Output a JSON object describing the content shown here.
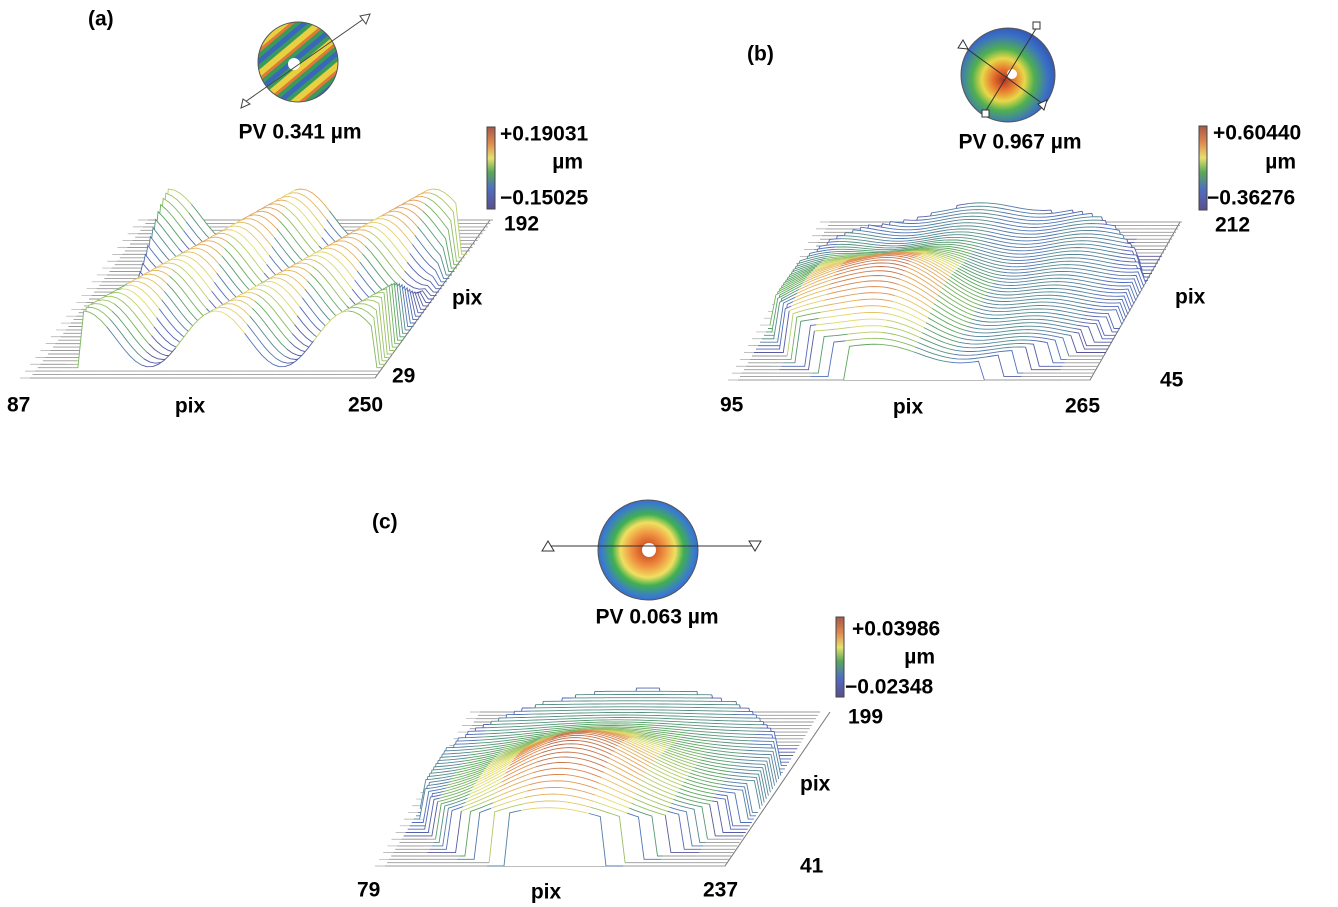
{
  "panels": [
    {
      "label": "(a)",
      "pv": "PV 0.341 µm",
      "colorbar": {
        "max": "+0.19031",
        "unit": "µm",
        "min": "−0.15025"
      },
      "axes": {
        "y_back": "192",
        "y_title": "pix",
        "y_front": "29",
        "x_left": "87",
        "x_title": "pix",
        "x_right": "250"
      }
    },
    {
      "label": "(b)",
      "pv": "PV 0.967 µm",
      "colorbar": {
        "max": "+0.60440",
        "unit": "µm",
        "min": "−0.36276"
      },
      "axes": {
        "y_back": "212",
        "y_title": "pix",
        "y_front": "45",
        "x_left": "95",
        "x_title": "pix",
        "x_right": "265"
      }
    },
    {
      "label": "(c)",
      "pv": "PV 0.063 µm",
      "colorbar": {
        "max": "+0.03986",
        "unit": "µm",
        "min": "−0.02348"
      },
      "axes": {
        "y_back": "199",
        "y_title": "pix",
        "y_front": "41",
        "x_left": "79",
        "x_title": "pix",
        "x_right": "237"
      }
    }
  ]
}
